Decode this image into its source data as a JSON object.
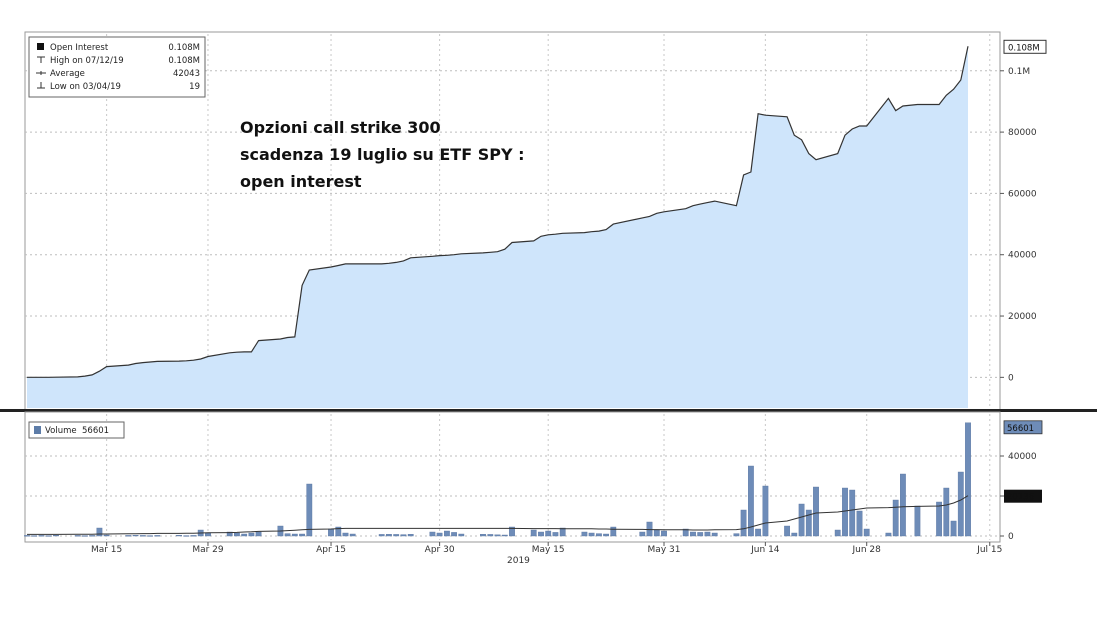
{
  "chart_data": {
    "type": "area",
    "title_lines": [
      "Opzioni call strike 300",
      "scadenza 19 luglio su ETF SPY :",
      "open interest"
    ],
    "legend": [
      {
        "label": "Open Interest",
        "value": "0.108M"
      },
      {
        "label": "High on 07/12/19",
        "value": "0.108M"
      },
      {
        "label": "Average",
        "value": "42043"
      },
      {
        "label": "Low on 03/04/19",
        "value": "19"
      }
    ],
    "x_ticks": [
      "Mar 15",
      "Mar 29",
      "Apr 15",
      "Apr 30",
      "May 15",
      "May 31",
      "Jun 14",
      "Jun 28",
      "Jul 15"
    ],
    "x_year_label": "2019",
    "y_ticks": [
      "0",
      "20000",
      "40000",
      "60000",
      "80000",
      "0.1M"
    ],
    "y_tick_values": [
      0,
      20000,
      40000,
      60000,
      80000,
      100000
    ],
    "ylim": [
      -10000,
      112000
    ],
    "last_value_label": "0.108M",
    "open_interest": {
      "x": [
        "2019-03-04",
        "2019-03-05",
        "2019-03-06",
        "2019-03-07",
        "2019-03-08",
        "2019-03-11",
        "2019-03-12",
        "2019-03-13",
        "2019-03-14",
        "2019-03-15",
        "2019-03-18",
        "2019-03-19",
        "2019-03-20",
        "2019-03-21",
        "2019-03-22",
        "2019-03-25",
        "2019-03-26",
        "2019-03-27",
        "2019-03-28",
        "2019-03-29",
        "2019-04-01",
        "2019-04-02",
        "2019-04-03",
        "2019-04-04",
        "2019-04-05",
        "2019-04-08",
        "2019-04-09",
        "2019-04-10",
        "2019-04-11",
        "2019-04-12",
        "2019-04-15",
        "2019-04-16",
        "2019-04-17",
        "2019-04-18",
        "2019-04-22",
        "2019-04-23",
        "2019-04-24",
        "2019-04-25",
        "2019-04-26",
        "2019-04-29",
        "2019-04-30",
        "2019-05-01",
        "2019-05-02",
        "2019-05-03",
        "2019-05-06",
        "2019-05-07",
        "2019-05-08",
        "2019-05-09",
        "2019-05-10",
        "2019-05-13",
        "2019-05-14",
        "2019-05-15",
        "2019-05-16",
        "2019-05-17",
        "2019-05-20",
        "2019-05-21",
        "2019-05-22",
        "2019-05-23",
        "2019-05-24",
        "2019-05-28",
        "2019-05-29",
        "2019-05-30",
        "2019-05-31",
        "2019-06-03",
        "2019-06-04",
        "2019-06-05",
        "2019-06-06",
        "2019-06-07",
        "2019-06-10",
        "2019-06-11",
        "2019-06-12",
        "2019-06-13",
        "2019-06-14",
        "2019-06-17",
        "2019-06-18",
        "2019-06-19",
        "2019-06-20",
        "2019-06-21",
        "2019-06-24",
        "2019-06-25",
        "2019-06-26",
        "2019-06-27",
        "2019-06-28",
        "2019-07-01",
        "2019-07-02",
        "2019-07-03",
        "2019-07-05",
        "2019-07-08",
        "2019-07-09",
        "2019-07-10",
        "2019-07-11",
        "2019-07-12"
      ],
      "y": [
        19,
        19,
        19,
        19,
        50,
        150,
        400,
        800,
        2000,
        3500,
        4000,
        4500,
        4800,
        5000,
        5200,
        5300,
        5400,
        5600,
        6000,
        6800,
        8000,
        8200,
        8300,
        8300,
        12000,
        12500,
        13000,
        13200,
        30000,
        35000,
        36000,
        36500,
        37000,
        37000,
        37000,
        37200,
        37500,
        38000,
        39000,
        39500,
        39700,
        39800,
        40000,
        40300,
        40600,
        40800,
        41000,
        41800,
        44000,
        44500,
        46000,
        46500,
        46700,
        47000,
        47200,
        47500,
        47700,
        48200,
        50000,
        52000,
        52500,
        53500,
        54000,
        55000,
        56000,
        56500,
        57000,
        57500,
        56000,
        66000,
        67000,
        86000,
        85500,
        85000,
        79000,
        77500,
        73000,
        71000,
        73000,
        79000,
        81000,
        82000,
        82000,
        91000,
        87000,
        88500,
        89000,
        89000,
        92000,
        94000,
        97000,
        108000
      ]
    },
    "volume": {
      "legend_label": "Volume",
      "legend_value": "56601",
      "y_ticks": [
        "0",
        "20000",
        "40000"
      ],
      "y_tick_values": [
        0,
        20000,
        40000
      ],
      "ylim": [
        -2000,
        60000
      ],
      "last_value_label": "56601",
      "avg_value_label": "20136",
      "values": [
        300,
        200,
        300,
        200,
        400,
        300,
        200,
        300,
        4000,
        500,
        300,
        400,
        300,
        200,
        300,
        400,
        200,
        300,
        3000,
        1500,
        2000,
        1500,
        1000,
        1500,
        2000,
        5000,
        1200,
        1000,
        1000,
        26000,
        3500,
        4500,
        1500,
        1000,
        800,
        900,
        800,
        700,
        900,
        2000,
        1500,
        2500,
        1800,
        1000,
        900,
        800,
        600,
        500,
        4500,
        3000,
        2000,
        2500,
        1800,
        4000,
        2000,
        1500,
        1200,
        1000,
        4500,
        2000,
        7000,
        3000,
        2500,
        3500,
        2000,
        1800,
        2000,
        1500,
        1200,
        13000,
        35000,
        3500,
        25000,
        5000,
        1500,
        16000,
        13000,
        24500,
        3000,
        24000,
        23000,
        12500,
        3500,
        1500,
        18000,
        31000,
        15000,
        17000,
        24000,
        7500,
        32000,
        56601
      ],
      "moving_average": [
        800,
        800,
        800,
        800,
        800,
        900,
        900,
        900,
        1000,
        1000,
        1100,
        1100,
        1200,
        1200,
        1300,
        1300,
        1400,
        1400,
        1500,
        1600,
        1700,
        1800,
        2000,
        2100,
        2300,
        2500,
        2700,
        2900,
        3100,
        3300,
        3500,
        3700,
        3800,
        3800,
        3800,
        3800,
        3800,
        3800,
        3800,
        3800,
        3800,
        3800,
        3800,
        3800,
        3800,
        3800,
        3800,
        3800,
        3800,
        3700,
        3700,
        3700,
        3700,
        3600,
        3600,
        3600,
        3500,
        3500,
        3400,
        3300,
        3200,
        3200,
        3100,
        3100,
        3000,
        3000,
        3000,
        3100,
        3200,
        3600,
        4500,
        5500,
        6500,
        7500,
        8500,
        9500,
        10500,
        11500,
        12000,
        12500,
        13000,
        13500,
        14000,
        14200,
        14400,
        14600,
        14800,
        15000,
        15500,
        16500,
        18000,
        20136
      ]
    }
  }
}
